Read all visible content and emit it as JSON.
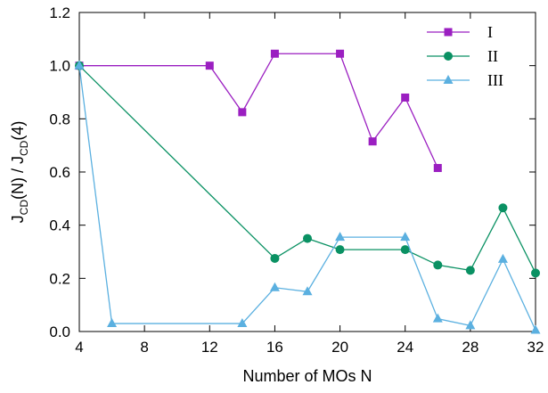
{
  "chart_data": {
    "type": "line",
    "xlabel": "Number of MOs N",
    "ylabel": {
      "main": "J",
      "sub1": "CD",
      "mid": "(N) / J",
      "sub2": "CD",
      "end": "(4)"
    },
    "xlim": [
      4,
      32
    ],
    "ylim": [
      0,
      1.2
    ],
    "xticks": [
      4,
      8,
      12,
      16,
      20,
      24,
      28,
      32
    ],
    "yticks": [
      0.0,
      0.2,
      0.4,
      0.6,
      0.8,
      1.0,
      1.2
    ],
    "ytick_labels": [
      "0.0",
      "0.2",
      "0.4",
      "0.6",
      "0.8",
      "1.0",
      "1.2"
    ],
    "legend_position": "top-right",
    "grid": false,
    "series": [
      {
        "name": "I",
        "color": "#9b1fc1",
        "marker": "square",
        "x": [
          4,
          12,
          14,
          16,
          20,
          22,
          24,
          26
        ],
        "y": [
          1.0,
          1.0,
          0.825,
          1.045,
          1.045,
          0.715,
          0.88,
          0.615
        ]
      },
      {
        "name": "II",
        "color": "#0a9163",
        "marker": "circle",
        "x": [
          4,
          16,
          18,
          20,
          24,
          26,
          28,
          30,
          32
        ],
        "y": [
          1.0,
          0.275,
          0.35,
          0.308,
          0.308,
          0.25,
          0.23,
          0.465,
          0.22
        ]
      },
      {
        "name": "III",
        "color": "#5bb0e0",
        "marker": "triangle",
        "x": [
          4,
          6,
          14,
          16,
          18,
          20,
          24,
          26,
          28,
          30,
          32
        ],
        "y": [
          1.0,
          0.03,
          0.03,
          0.165,
          0.15,
          0.355,
          0.355,
          0.048,
          0.022,
          0.272,
          0.005
        ]
      }
    ]
  }
}
